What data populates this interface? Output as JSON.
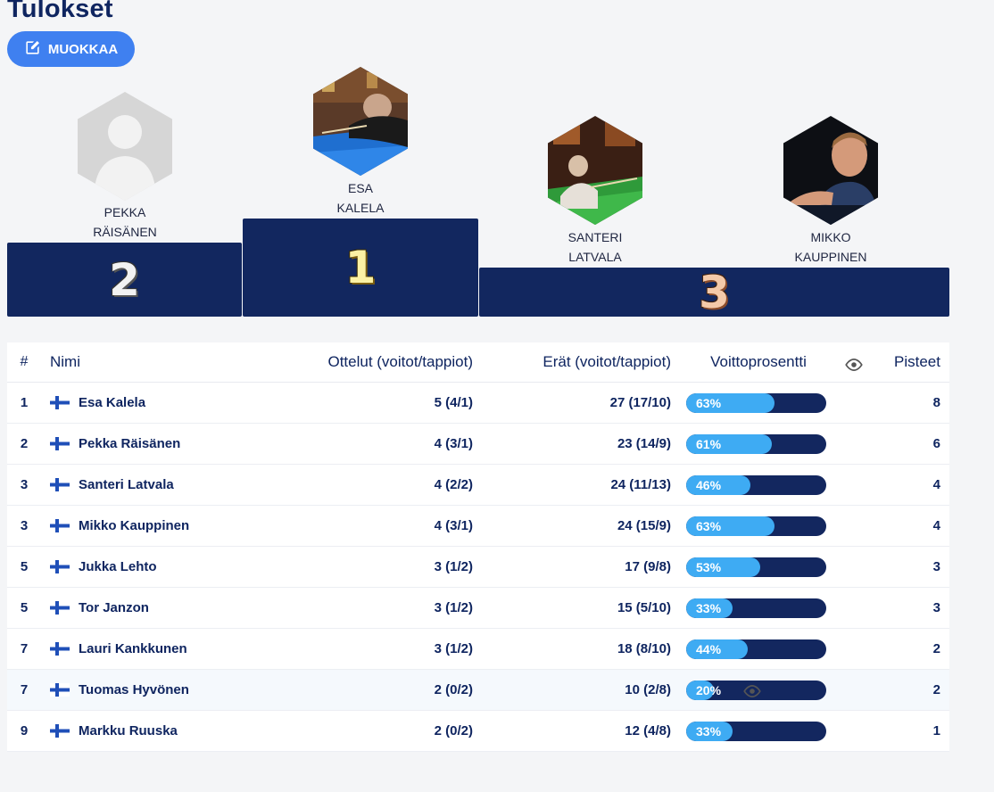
{
  "page": {
    "title": "Tulokset",
    "edit_label": "MUOKKAA"
  },
  "podium": {
    "second": {
      "first": "PEKKA",
      "last": "RÄISÄNEN",
      "place": "2"
    },
    "first": {
      "first": "ESA",
      "last": "KALELA",
      "place": "1"
    },
    "third": [
      {
        "first": "SANTERI",
        "last": "LATVALA"
      },
      {
        "first": "MIKKO",
        "last": "KAUPPINEN"
      }
    ],
    "third_place": "3"
  },
  "table": {
    "headers": {
      "rank": "#",
      "name": "Nimi",
      "matches": "Ottelut (voitot/tappiot)",
      "sets": "Erät (voitot/tappiot)",
      "win_pct": "Voittoprosentti",
      "points": "Pisteet"
    },
    "rows": [
      {
        "rank": "1",
        "name": "Esa Kalela",
        "matches": "5 (4/1)",
        "sets": "27 (17/10)",
        "pct_label": "63%",
        "pct": 63,
        "points": "8"
      },
      {
        "rank": "2",
        "name": "Pekka Räisänen",
        "matches": "4 (3/1)",
        "sets": "23 (14/9)",
        "pct_label": "61%",
        "pct": 61,
        "points": "6"
      },
      {
        "rank": "3",
        "name": "Santeri Latvala",
        "matches": "4 (2/2)",
        "sets": "24 (11/13)",
        "pct_label": "46%",
        "pct": 46,
        "points": "4"
      },
      {
        "rank": "3",
        "name": "Mikko Kauppinen",
        "matches": "4 (3/1)",
        "sets": "24 (15/9)",
        "pct_label": "63%",
        "pct": 63,
        "points": "4"
      },
      {
        "rank": "5",
        "name": "Jukka Lehto",
        "matches": "3 (1/2)",
        "sets": "17 (9/8)",
        "pct_label": "53%",
        "pct": 53,
        "points": "3"
      },
      {
        "rank": "5",
        "name": "Tor Janzon",
        "matches": "3 (1/2)",
        "sets": "15 (5/10)",
        "pct_label": "33%",
        "pct": 33,
        "points": "3"
      },
      {
        "rank": "7",
        "name": "Lauri Kankkunen",
        "matches": "3 (1/2)",
        "sets": "18 (8/10)",
        "pct_label": "44%",
        "pct": 44,
        "points": "2"
      },
      {
        "rank": "7",
        "name": "Tuomas Hyvönen",
        "matches": "2 (0/2)",
        "sets": "10 (2/8)",
        "pct_label": "20%",
        "pct": 20,
        "points": "2",
        "highlighted": true
      },
      {
        "rank": "9",
        "name": "Markku Ruuska",
        "matches": "2 (0/2)",
        "sets": "12 (4/8)",
        "pct_label": "33%",
        "pct": 33,
        "points": "1"
      }
    ]
  },
  "colors": {
    "navy": "#12275f",
    "accent_blue": "#3f80f0",
    "bar_fill": "#3eabf3"
  },
  "icons": {
    "edit": "edit-square-icon",
    "visibility": "eye-icon",
    "flag": "finland-flag-icon"
  }
}
